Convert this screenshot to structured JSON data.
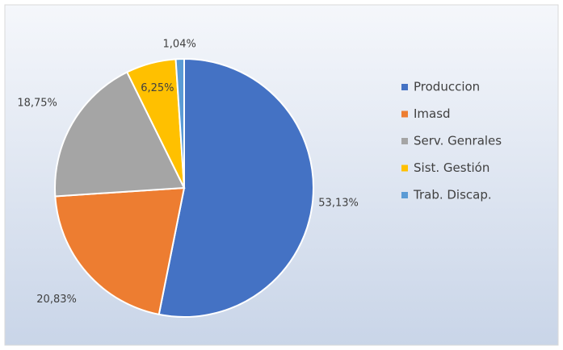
{
  "chart_data": {
    "type": "pie",
    "categories": [
      "Produccion",
      "Imasd",
      "Serv. Genrales",
      "Sist. Gestión",
      "Trab. Discap."
    ],
    "values": [
      53.13,
      20.83,
      18.75,
      6.25,
      1.04
    ],
    "value_labels": [
      "53,13%",
      "20,83%",
      "18,75%",
      "6,25%",
      "1,04%"
    ],
    "colors": [
      "#4472c4",
      "#ed7d31",
      "#a5a5a5",
      "#ffc000",
      "#5b9bd5"
    ],
    "legend": "right"
  }
}
